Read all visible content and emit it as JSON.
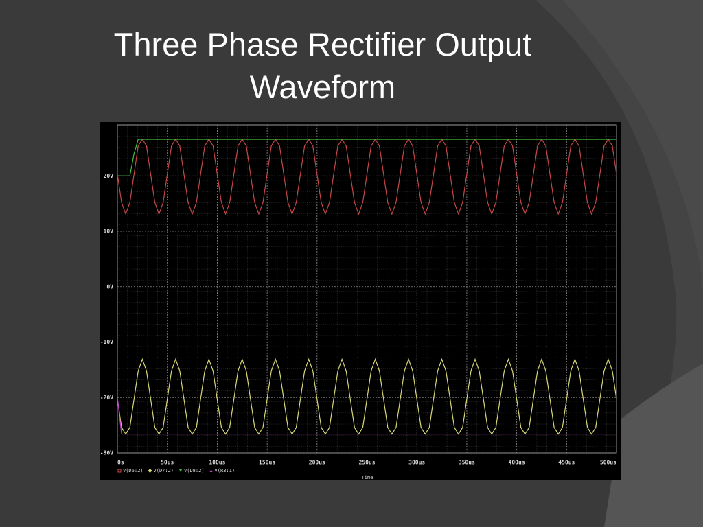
{
  "chart_data": {
    "type": "line",
    "title": "Three Phase Rectifier Output Waveform",
    "x_label": "Time",
    "xlim": [
      0,
      500
    ],
    "ylim": [
      -30,
      29.2
    ],
    "xticks": [
      {
        "value": 0,
        "label": "0s"
      },
      {
        "value": 50,
        "label": "50us"
      },
      {
        "value": 100,
        "label": "100us"
      },
      {
        "value": 150,
        "label": "150us"
      },
      {
        "value": 200,
        "label": "200us"
      },
      {
        "value": 250,
        "label": "250us"
      },
      {
        "value": 300,
        "label": "300us"
      },
      {
        "value": 350,
        "label": "350us"
      },
      {
        "value": 400,
        "label": "400us"
      },
      {
        "value": 450,
        "label": "450us"
      },
      {
        "value": 500,
        "label": "500us"
      }
    ],
    "yticks": [
      {
        "value": -30,
        "label": "-30V"
      },
      {
        "value": -20,
        "label": "-20V"
      },
      {
        "value": -10,
        "label": "-10V"
      },
      {
        "value": 0,
        "label": "0V"
      },
      {
        "value": 10,
        "label": "10V"
      },
      {
        "value": 20,
        "label": "20V"
      }
    ],
    "grid": true,
    "x": [
      0,
      4.17,
      8.33,
      12.5,
      16.67,
      20.83,
      25,
      29.17,
      33.33,
      37.5,
      41.67,
      45.83,
      50,
      54.17,
      58.33,
      62.5,
      66.67,
      70.83,
      75,
      79.17,
      83.33,
      87.5,
      91.67,
      95.83,
      100,
      104.17,
      108.33,
      112.5,
      116.67,
      120.83,
      125,
      129.17,
      133.33,
      137.5,
      141.67,
      145.83,
      150,
      154.17,
      158.33,
      162.5,
      166.67,
      170.83,
      175,
      179.17,
      183.33,
      187.5,
      191.67,
      195.83,
      200,
      204.17,
      208.33,
      212.5,
      216.67,
      220.83,
      225,
      229.17,
      233.33,
      237.5,
      241.67,
      245.83,
      250,
      254.17,
      258.33,
      262.5,
      266.67,
      270.83,
      275,
      279.17,
      283.33,
      287.5,
      291.67,
      295.83,
      300,
      304.17,
      308.33,
      312.5,
      316.67,
      320.83,
      325,
      329.17,
      333.33,
      337.5,
      341.67,
      345.83,
      350,
      354.17,
      358.33,
      362.5,
      366.67,
      370.83,
      375,
      379.17,
      383.33,
      387.5,
      391.67,
      395.83,
      400,
      404.17,
      408.33,
      412.5,
      416.67,
      420.83,
      425,
      429.17,
      433.33,
      437.5,
      441.67,
      445.83,
      450,
      454.17,
      458.33,
      462.5,
      466.67,
      470.83,
      475,
      479.17,
      483.33,
      487.5,
      491.67,
      495.83,
      500
    ],
    "series": [
      {
        "name": "V(D6:2)",
        "color": "#c84848",
        "values": [
          20.3,
          15.2,
          13.1,
          15.2,
          20.3,
          25.4,
          26.6,
          25.4,
          20.3,
          15.2,
          13.1,
          15.2,
          20.3,
          25.4,
          26.6,
          25.4,
          20.3,
          15.2,
          13.1,
          15.2,
          20.3,
          25.4,
          26.6,
          25.4,
          20.3,
          15.2,
          13.1,
          15.2,
          20.3,
          25.4,
          26.6,
          25.4,
          20.3,
          15.2,
          13.1,
          15.2,
          20.3,
          25.4,
          26.6,
          25.4,
          20.3,
          15.2,
          13.1,
          15.2,
          20.3,
          25.4,
          26.6,
          25.4,
          20.3,
          15.2,
          13.1,
          15.2,
          20.3,
          25.4,
          26.6,
          25.4,
          20.3,
          15.2,
          13.1,
          15.2,
          20.3,
          25.4,
          26.6,
          25.4,
          20.3,
          15.2,
          13.1,
          15.2,
          20.3,
          25.4,
          26.6,
          25.4,
          20.3,
          15.2,
          13.1,
          15.2,
          20.3,
          25.4,
          26.6,
          25.4,
          20.3,
          15.2,
          13.1,
          15.2,
          20.3,
          25.4,
          26.6,
          25.4,
          20.3,
          15.2,
          13.1,
          15.2,
          20.3,
          25.4,
          26.6,
          25.4,
          20.3,
          15.2,
          13.1,
          15.2,
          20.3,
          25.4,
          26.6,
          25.4,
          20.3,
          15.2,
          13.1,
          15.2,
          20.3,
          25.4,
          26.6,
          25.4,
          20.3,
          15.2,
          13.1,
          15.2,
          20.3,
          25.4,
          26.6,
          25.4,
          20.3
        ]
      },
      {
        "name": "V(D7:2)",
        "color": "#d8d878",
        "values": [
          -20.3,
          -25.4,
          -26.6,
          -25.4,
          -20.3,
          -15.2,
          -13.1,
          -15.2,
          -20.3,
          -25.4,
          -26.6,
          -25.4,
          -20.3,
          -15.2,
          -13.1,
          -15.2,
          -20.3,
          -25.4,
          -26.6,
          -25.4,
          -20.3,
          -15.2,
          -13.1,
          -15.2,
          -20.3,
          -25.4,
          -26.6,
          -25.4,
          -20.3,
          -15.2,
          -13.1,
          -15.2,
          -20.3,
          -25.4,
          -26.6,
          -25.4,
          -20.3,
          -15.2,
          -13.1,
          -15.2,
          -20.3,
          -25.4,
          -26.6,
          -25.4,
          -20.3,
          -15.2,
          -13.1,
          -15.2,
          -20.3,
          -25.4,
          -26.6,
          -25.4,
          -20.3,
          -15.2,
          -13.1,
          -15.2,
          -20.3,
          -25.4,
          -26.6,
          -25.4,
          -20.3,
          -15.2,
          -13.1,
          -15.2,
          -20.3,
          -25.4,
          -26.6,
          -25.4,
          -20.3,
          -15.2,
          -13.1,
          -15.2,
          -20.3,
          -25.4,
          -26.6,
          -25.4,
          -20.3,
          -15.2,
          -13.1,
          -15.2,
          -20.3,
          -25.4,
          -26.6,
          -25.4,
          -20.3,
          -15.2,
          -13.1,
          -15.2,
          -20.3,
          -25.4,
          -26.6,
          -25.4,
          -20.3,
          -15.2,
          -13.1,
          -15.2,
          -20.3,
          -25.4,
          -26.6,
          -25.4,
          -20.3,
          -15.2,
          -13.1,
          -15.2,
          -20.3,
          -25.4,
          -26.6,
          -25.4,
          -20.3,
          -15.2,
          -13.1,
          -15.2,
          -20.3,
          -25.4,
          -26.6,
          -25.4,
          -20.3,
          -15.2,
          -13.1,
          -15.2,
          -20.3
        ]
      },
      {
        "name": "V(D8:2)",
        "color": "#40c040",
        "values": [
          20,
          20,
          20,
          20,
          24,
          26.6,
          26.6,
          26.6,
          26.6,
          26.6,
          26.6,
          26.6,
          26.6,
          26.6,
          26.6,
          26.6,
          26.6,
          26.6,
          26.6,
          26.6,
          26.6,
          26.6,
          26.6,
          26.6,
          26.6,
          26.6,
          26.6,
          26.6,
          26.6,
          26.6,
          26.6,
          26.6,
          26.6,
          26.6,
          26.6,
          26.6,
          26.6,
          26.6,
          26.6,
          26.6,
          26.6,
          26.6,
          26.6,
          26.6,
          26.6,
          26.6,
          26.6,
          26.6,
          26.6,
          26.6,
          26.6,
          26.6,
          26.6,
          26.6,
          26.6,
          26.6,
          26.6,
          26.6,
          26.6,
          26.6,
          26.6,
          26.6,
          26.6,
          26.6,
          26.6,
          26.6,
          26.6,
          26.6,
          26.6,
          26.6,
          26.6,
          26.6,
          26.6,
          26.6,
          26.6,
          26.6,
          26.6,
          26.6,
          26.6,
          26.6,
          26.6,
          26.6,
          26.6,
          26.6,
          26.6,
          26.6,
          26.6,
          26.6,
          26.6,
          26.6,
          26.6,
          26.6,
          26.6,
          26.6,
          26.6,
          26.6,
          26.6,
          26.6,
          26.6,
          26.6,
          26.6,
          26.6,
          26.6,
          26.6,
          26.6,
          26.6,
          26.6,
          26.6,
          26.6,
          26.6,
          26.6,
          26.6,
          26.6,
          26.6,
          26.6,
          26.6,
          26.6,
          26.6,
          26.6,
          26.6,
          26.6
        ]
      },
      {
        "name": "V(R3:1)",
        "color": "#c040c8",
        "values": [
          -20,
          -26.6,
          -26.6,
          -26.6,
          -26.6,
          -26.6,
          -26.6,
          -26.6,
          -26.6,
          -26.6,
          -26.6,
          -26.6,
          -26.6,
          -26.6,
          -26.6,
          -26.6,
          -26.6,
          -26.6,
          -26.6,
          -26.6,
          -26.6,
          -26.6,
          -26.6,
          -26.6,
          -26.6,
          -26.6,
          -26.6,
          -26.6,
          -26.6,
          -26.6,
          -26.6,
          -26.6,
          -26.6,
          -26.6,
          -26.6,
          -26.6,
          -26.6,
          -26.6,
          -26.6,
          -26.6,
          -26.6,
          -26.6,
          -26.6,
          -26.6,
          -26.6,
          -26.6,
          -26.6,
          -26.6,
          -26.6,
          -26.6,
          -26.6,
          -26.6,
          -26.6,
          -26.6,
          -26.6,
          -26.6,
          -26.6,
          -26.6,
          -26.6,
          -26.6,
          -26.6,
          -26.6,
          -26.6,
          -26.6,
          -26.6,
          -26.6,
          -26.6,
          -26.6,
          -26.6,
          -26.6,
          -26.6,
          -26.6,
          -26.6,
          -26.6,
          -26.6,
          -26.6,
          -26.6,
          -26.6,
          -26.6,
          -26.6,
          -26.6,
          -26.6,
          -26.6,
          -26.6,
          -26.6,
          -26.6,
          -26.6,
          -26.6,
          -26.6,
          -26.6,
          -26.6,
          -26.6,
          -26.6,
          -26.6,
          -26.6,
          -26.6,
          -26.6,
          -26.6,
          -26.6,
          -26.6,
          -26.6,
          -26.6,
          -26.6,
          -26.6,
          -26.6,
          -26.6,
          -26.6,
          -26.6,
          -26.6,
          -26.6,
          -26.6,
          -26.6,
          -26.6,
          -26.6,
          -26.6,
          -26.6,
          -26.6,
          -26.6,
          -26.6,
          -26.6,
          -26.6
        ]
      }
    ]
  }
}
